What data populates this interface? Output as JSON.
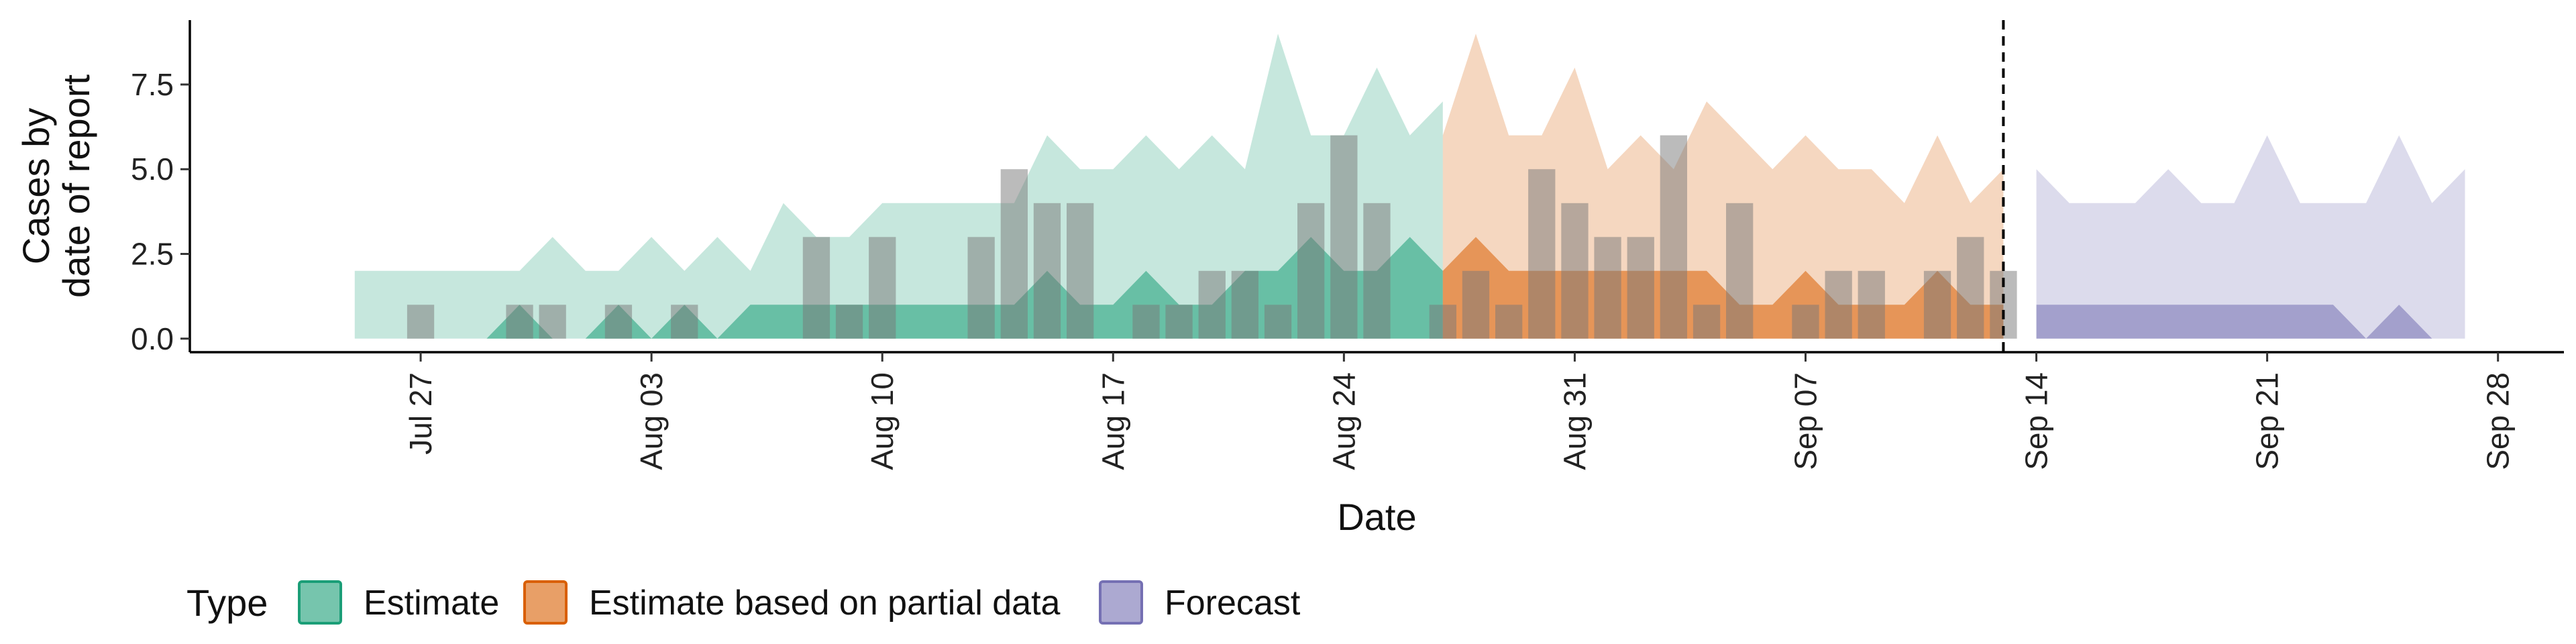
{
  "chart_data": {
    "type": "area",
    "xlabel": "Date",
    "ylabel": [
      "Cases by",
      "date of report"
    ],
    "ylim": [
      -0.4,
      9.4
    ],
    "yticks": [
      0.0,
      2.5,
      5.0,
      7.5
    ],
    "ytick_labels": [
      "0.0",
      "2.5",
      "5.0",
      "7.5"
    ],
    "xlim": [
      "2020-07-20",
      "2020-09-30"
    ],
    "xticks": [
      "2020-07-27",
      "2020-08-03",
      "2020-08-10",
      "2020-08-17",
      "2020-08-24",
      "2020-08-31",
      "2020-09-07",
      "2020-09-14",
      "2020-09-21",
      "2020-09-28"
    ],
    "xtick_labels": [
      "Jul 27",
      "Aug 03",
      "Aug 10",
      "Aug 17",
      "Aug 24",
      "Aug 31",
      "Sep 07",
      "Sep 14",
      "Sep 21",
      "Sep 28"
    ],
    "vline_date": "2020-09-13",
    "legend": {
      "title": "Type",
      "position": "bottom-left",
      "items": [
        {
          "label": "Estimate",
          "color": "#1b9e77"
        },
        {
          "label": "Estimate based on partial data",
          "color": "#d95f02"
        },
        {
          "label": "Forecast",
          "color": "#7570b3"
        }
      ]
    },
    "observed_cases": [
      {
        "date": "2020-07-27",
        "value": 1
      },
      {
        "date": "2020-07-30",
        "value": 1
      },
      {
        "date": "2020-07-31",
        "value": 1
      },
      {
        "date": "2020-08-02",
        "value": 1
      },
      {
        "date": "2020-08-04",
        "value": 1
      },
      {
        "date": "2020-08-08",
        "value": 3
      },
      {
        "date": "2020-08-09",
        "value": 1
      },
      {
        "date": "2020-08-10",
        "value": 3
      },
      {
        "date": "2020-08-13",
        "value": 3
      },
      {
        "date": "2020-08-14",
        "value": 5
      },
      {
        "date": "2020-08-15",
        "value": 4
      },
      {
        "date": "2020-08-16",
        "value": 4
      },
      {
        "date": "2020-08-18",
        "value": 1
      },
      {
        "date": "2020-08-19",
        "value": 1
      },
      {
        "date": "2020-08-20",
        "value": 2
      },
      {
        "date": "2020-08-21",
        "value": 2
      },
      {
        "date": "2020-08-22",
        "value": 1
      },
      {
        "date": "2020-08-23",
        "value": 4
      },
      {
        "date": "2020-08-24",
        "value": 6
      },
      {
        "date": "2020-08-25",
        "value": 4
      },
      {
        "date": "2020-08-27",
        "value": 1
      },
      {
        "date": "2020-08-28",
        "value": 2
      },
      {
        "date": "2020-08-29",
        "value": 1
      },
      {
        "date": "2020-08-30",
        "value": 5
      },
      {
        "date": "2020-08-31",
        "value": 4
      },
      {
        "date": "2020-09-01",
        "value": 3
      },
      {
        "date": "2020-09-02",
        "value": 3
      },
      {
        "date": "2020-09-03",
        "value": 6
      },
      {
        "date": "2020-09-04",
        "value": 1
      },
      {
        "date": "2020-09-05",
        "value": 4
      },
      {
        "date": "2020-09-07",
        "value": 1
      },
      {
        "date": "2020-09-08",
        "value": 2
      },
      {
        "date": "2020-09-09",
        "value": 2
      },
      {
        "date": "2020-09-11",
        "value": 2
      },
      {
        "date": "2020-09-12",
        "value": 3
      },
      {
        "date": "2020-09-13",
        "value": 2
      }
    ],
    "series": [
      {
        "name": "Estimate",
        "color": "#1b9e77",
        "start": "2020-07-25",
        "outer_lower": [
          0,
          0,
          0,
          0,
          0,
          0,
          0,
          0,
          0,
          0,
          0,
          0,
          0,
          0,
          0,
          0,
          0,
          0,
          0,
          0,
          0,
          0,
          0,
          0,
          0,
          0,
          0,
          0,
          0,
          0,
          0,
          0,
          0,
          0
        ],
        "outer_upper": [
          2,
          2,
          2,
          2,
          2,
          2,
          3,
          2,
          2,
          3,
          2,
          3,
          2,
          4,
          3,
          3,
          4,
          4,
          4,
          4,
          4,
          6,
          5,
          5,
          6,
          5,
          6,
          5,
          9,
          6,
          6,
          8,
          6,
          7
        ],
        "inner_lower": [
          0,
          0,
          0,
          0,
          0,
          0,
          0,
          0,
          0,
          0,
          0,
          0,
          0,
          0,
          0,
          0,
          0,
          0,
          0,
          0,
          0,
          0,
          0,
          0,
          0,
          0,
          0,
          0,
          0,
          0,
          0,
          0,
          0,
          0
        ],
        "inner_upper": [
          0,
          0,
          0,
          0,
          0,
          1,
          0,
          0,
          1,
          0,
          1,
          0,
          1,
          1,
          1,
          1,
          1,
          1,
          1,
          1,
          1,
          2,
          1,
          1,
          2,
          1,
          1,
          2,
          2,
          3,
          2,
          2,
          3,
          2
        ]
      },
      {
        "name": "Estimate based on partial data",
        "color": "#d95f02",
        "start": "2020-08-27",
        "outer_lower": [
          0,
          0,
          0,
          0,
          0,
          0,
          0,
          0,
          0,
          0,
          0,
          0,
          0,
          0,
          0,
          0,
          0,
          0
        ],
        "outer_upper": [
          6,
          9,
          6,
          6,
          8,
          5,
          6,
          5,
          7,
          6,
          5,
          6,
          5,
          5,
          4,
          6,
          4,
          5
        ],
        "inner_lower": [
          0,
          0,
          0,
          0,
          0,
          0,
          0,
          0,
          0,
          0,
          0,
          0,
          0,
          0,
          0,
          0,
          0,
          0
        ],
        "inner_upper": [
          2,
          3,
          2,
          2,
          2,
          2,
          2,
          2,
          2,
          1,
          1,
          2,
          1,
          1,
          1,
          2,
          1,
          1
        ]
      },
      {
        "name": "Forecast",
        "color": "#7570b3",
        "start": "2020-09-14",
        "outer_lower": [
          0,
          0,
          0,
          0,
          0,
          0,
          0,
          0,
          0,
          0,
          0,
          0,
          0,
          0
        ],
        "outer_upper": [
          5,
          4,
          4,
          4,
          5,
          4,
          4,
          6,
          4,
          4,
          4,
          6,
          4,
          5
        ],
        "inner_lower": [
          0,
          0,
          0,
          0,
          0,
          0,
          0,
          0,
          0,
          0,
          0,
          0,
          0,
          0
        ],
        "inner_upper": [
          1,
          1,
          1,
          1,
          1,
          1,
          1,
          1,
          1,
          1,
          0,
          1,
          0,
          0
        ]
      }
    ]
  }
}
